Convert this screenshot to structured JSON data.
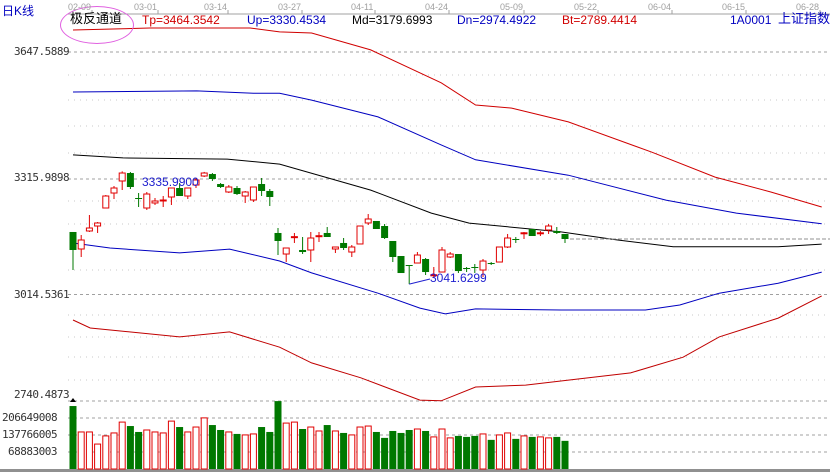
{
  "header": {
    "period": "日K线",
    "indicator": "极反通道",
    "tp": "Tp=3464.3542",
    "up": "Up=3330.4534",
    "md": "Md=3179.6993",
    "dn": "Dn=2974.4922",
    "bt": "Bt=2789.4414",
    "code": "1A0001",
    "name": "上证指数"
  },
  "dates": [
    "02-09",
    "03-01",
    "03-14",
    "03-27",
    "04-11",
    "04-24",
    "05-09",
    "05-22",
    "06-04",
    "06-15",
    "06-28"
  ],
  "price_labels": [
    "3647.5889",
    "3315.9898",
    "3014.5361",
    "2740.4873"
  ],
  "volume_labels": [
    "206649008",
    "137766005",
    "68883003"
  ],
  "annotations": {
    "high": "3335.9900",
    "low": "3041.6299"
  },
  "colors": {
    "up": "#e00000",
    "down": "#007800",
    "tp": "#d00000",
    "upper": "#0000c0",
    "md": "#000000",
    "dn": "#0000c0",
    "bt": "#c00000",
    "text_blue": "#0000c0"
  },
  "chart_data": {
    "type": "candlestick",
    "candles_ohlc": [
      [
        3177.7,
        3130.7,
        3177.7,
        3078.4
      ],
      [
        3133.3,
        3156.8,
        3169.8,
        3112.4
      ],
      [
        3180.3,
        3188.1,
        3222.0,
        3177.7
      ],
      [
        3193.3,
        3201.2,
        3203.8,
        3175.1
      ],
      [
        3240.3,
        3271.6,
        3274.2,
        3240.3
      ],
      [
        3279.4,
        3292.5,
        3297.7,
        3263.8
      ],
      [
        3310.8,
        3331.6,
        3335.99,
        3287.3
      ],
      [
        3331.6,
        3295.1,
        3334.3,
        3289.9
      ],
      [
        3266.4,
        3263.8,
        3279.4,
        3242.9
      ],
      [
        3240.3,
        3276.8,
        3282.1,
        3235.1
      ],
      [
        3253.4,
        3258.6,
        3266.4,
        3248.1
      ],
      [
        3258.6,
        3261.2,
        3271.6,
        3242.9
      ],
      [
        3269.0,
        3292.5,
        3292.5,
        3248.1
      ],
      [
        3292.5,
        3271.6,
        3305.5,
        3271.6
      ],
      [
        3271.6,
        3292.5,
        3292.5,
        3263.8
      ],
      [
        3300.3,
        3313.4,
        3318.6,
        3292.5
      ],
      [
        3323.8,
        3331.6,
        3334.5,
        3321.2
      ],
      [
        3329.0,
        3316.0,
        3331.6,
        3310.8
      ],
      [
        3302.9,
        3295.1,
        3305.5,
        3292.5
      ],
      [
        3282.1,
        3295.1,
        3300.3,
        3279.4
      ],
      [
        3292.5,
        3276.8,
        3297.7,
        3274.2
      ],
      [
        3271.6,
        3282.1,
        3284.7,
        3253.4
      ],
      [
        3261.2,
        3295.1,
        3295.1,
        3256.0
      ],
      [
        3302.9,
        3284.7,
        3318.6,
        3271.6
      ],
      [
        3284.7,
        3269.0,
        3289.9,
        3245.5
      ],
      [
        3175.1,
        3154.2,
        3188.1,
        3117.6
      ],
      [
        3120.2,
        3135.9,
        3135.9,
        3099.3
      ],
      [
        3164.6,
        3165.5,
        3175.1,
        3149.0
      ],
      [
        3130.7,
        3125.4,
        3164.6,
        3120.2
      ],
      [
        3130.7,
        3162.0,
        3177.7,
        3099.3
      ],
      [
        3167.2,
        3168.0,
        3177.7,
        3151.6
      ],
      [
        3175.1,
        3164.6,
        3190.7,
        3164.6
      ],
      [
        3133.3,
        3138.5,
        3138.5,
        3122.8
      ],
      [
        3149.0,
        3135.9,
        3162.0,
        3130.7
      ],
      [
        3125.4,
        3138.5,
        3143.7,
        3112.4
      ],
      [
        3146.4,
        3193.3,
        3193.3,
        3146.4
      ],
      [
        3201.2,
        3211.6,
        3224.6,
        3195.9
      ],
      [
        3206.4,
        3185.5,
        3206.4,
        3185.5
      ],
      [
        3193.3,
        3162.0,
        3198.5,
        3159.4
      ],
      [
        3154.2,
        3112.4,
        3154.2,
        3099.3
      ],
      [
        3115.0,
        3070.6,
        3115.0,
        3070.6
      ],
      [
        3091.5,
        3091.0,
        3091.5,
        3041.63
      ],
      [
        3096.7,
        3117.6,
        3125.4,
        3096.7
      ],
      [
        3107.2,
        3073.2,
        3109.8,
        3065.4
      ],
      [
        3065.4,
        3066.0,
        3086.3,
        3057.6
      ],
      [
        3073.2,
        3130.7,
        3138.5,
        3073.2
      ],
      [
        3112.4,
        3120.2,
        3125.4,
        3109.8
      ],
      [
        3120.2,
        3075.8,
        3120.2,
        3070.6
      ],
      [
        3083.7,
        3083.2,
        3086.3,
        3073.2
      ],
      [
        3086.3,
        3083.7,
        3094.1,
        3070.6
      ],
      [
        3078.4,
        3101.9,
        3107.2,
        3060.2
      ],
      [
        3096.7,
        3096.2,
        3099.3,
        3091.5
      ],
      [
        3099.3,
        3138.5,
        3138.5,
        3099.3
      ],
      [
        3138.5,
        3162.0,
        3172.5,
        3135.9
      ],
      [
        3159.4,
        3159.0,
        3164.6,
        3149.0
      ],
      [
        3175.1,
        3175.6,
        3177.7,
        3159.4
      ],
      [
        3185.5,
        3167.2,
        3185.5,
        3167.2
      ],
      [
        3175.1,
        3175.6,
        3180.3,
        3167.2
      ],
      [
        3182.9,
        3193.3,
        3198.5,
        3172.5
      ],
      [
        3180.3,
        3175.1,
        3190.7,
        3172.5
      ],
      [
        3172.5,
        3159.4,
        3172.5,
        3149.0
      ]
    ],
    "volume_millions": [
      255,
      150,
      150,
      101,
      134,
      146,
      190,
      174,
      150,
      158,
      150,
      146,
      194,
      170,
      150,
      170,
      207,
      178,
      158,
      150,
      142,
      138,
      142,
      170,
      150,
      275,
      186,
      190,
      162,
      170,
      154,
      178,
      154,
      146,
      138,
      170,
      174,
      150,
      126,
      154,
      146,
      158,
      162,
      154,
      130,
      162,
      126,
      134,
      130,
      134,
      142,
      118,
      138,
      146,
      122,
      134,
      130,
      130,
      126,
      130,
      114
    ],
    "channel_lines_index_price": {
      "tp": [
        [
          0,
          3705
        ],
        [
          9.4,
          3710
        ],
        [
          21.6,
          3710
        ],
        [
          25.2,
          3700
        ],
        [
          29.1,
          3697
        ],
        [
          36.3,
          3653
        ],
        [
          44.9,
          3567
        ],
        [
          49.1,
          3509
        ],
        [
          53.5,
          3501
        ],
        [
          60.4,
          3465
        ],
        [
          70.6,
          3386
        ],
        [
          78.3,
          3321
        ],
        [
          85.1,
          3282
        ],
        [
          91.3,
          3243
        ]
      ],
      "up": [
        [
          0,
          3543
        ],
        [
          15.1,
          3546
        ],
        [
          22,
          3540
        ],
        [
          25.2,
          3540
        ],
        [
          29.1,
          3522
        ],
        [
          37.2,
          3478
        ],
        [
          44.9,
          3405
        ],
        [
          49.1,
          3366
        ],
        [
          60.4,
          3326
        ],
        [
          72.3,
          3261
        ],
        [
          80.9,
          3227
        ],
        [
          91.3,
          3199
        ]
      ],
      "md": [
        [
          0,
          3379
        ],
        [
          6.1,
          3371
        ],
        [
          18.8,
          3368
        ],
        [
          25.2,
          3355
        ],
        [
          36.3,
          3287
        ],
        [
          43.7,
          3227
        ],
        [
          48.3,
          3201
        ],
        [
          59.5,
          3178
        ],
        [
          66.3,
          3157
        ],
        [
          73.2,
          3139
        ],
        [
          86,
          3139
        ],
        [
          91.3,
          3146
        ]
      ],
      "dn": [
        [
          0,
          3149
        ],
        [
          4.5,
          3136
        ],
        [
          13,
          3123
        ],
        [
          19.1,
          3133
        ],
        [
          25.2,
          3102
        ],
        [
          29.1,
          3071
        ],
        [
          37.2,
          3018
        ],
        [
          42.3,
          2979
        ],
        [
          45.4,
          2964
        ],
        [
          49.1,
          2977
        ],
        [
          59.5,
          2974
        ],
        [
          69.8,
          2974
        ],
        [
          74,
          2987
        ],
        [
          78.8,
          3018
        ],
        [
          86,
          3044
        ],
        [
          91.3,
          3073
        ]
      ],
      "bt": [
        [
          0,
          2948
        ],
        [
          2.1,
          2927
        ],
        [
          13,
          2904
        ],
        [
          19.1,
          2917
        ],
        [
          25.2,
          2877
        ],
        [
          29.1,
          2836
        ],
        [
          35.1,
          2797
        ],
        [
          42.3,
          2739
        ],
        [
          44.9,
          2737
        ],
        [
          49.1,
          2773
        ],
        [
          55.2,
          2778
        ],
        [
          68,
          2810
        ],
        [
          74.4,
          2851
        ],
        [
          78.8,
          2904
        ],
        [
          86,
          2953
        ],
        [
          91.3,
          3011
        ]
      ]
    },
    "last_close_ref": 3159.4,
    "price_grid": [
      3647.5889,
      3315.9898,
      3014.5361
    ],
    "volume_grid": [
      206649008,
      137766005,
      68883003
    ]
  }
}
